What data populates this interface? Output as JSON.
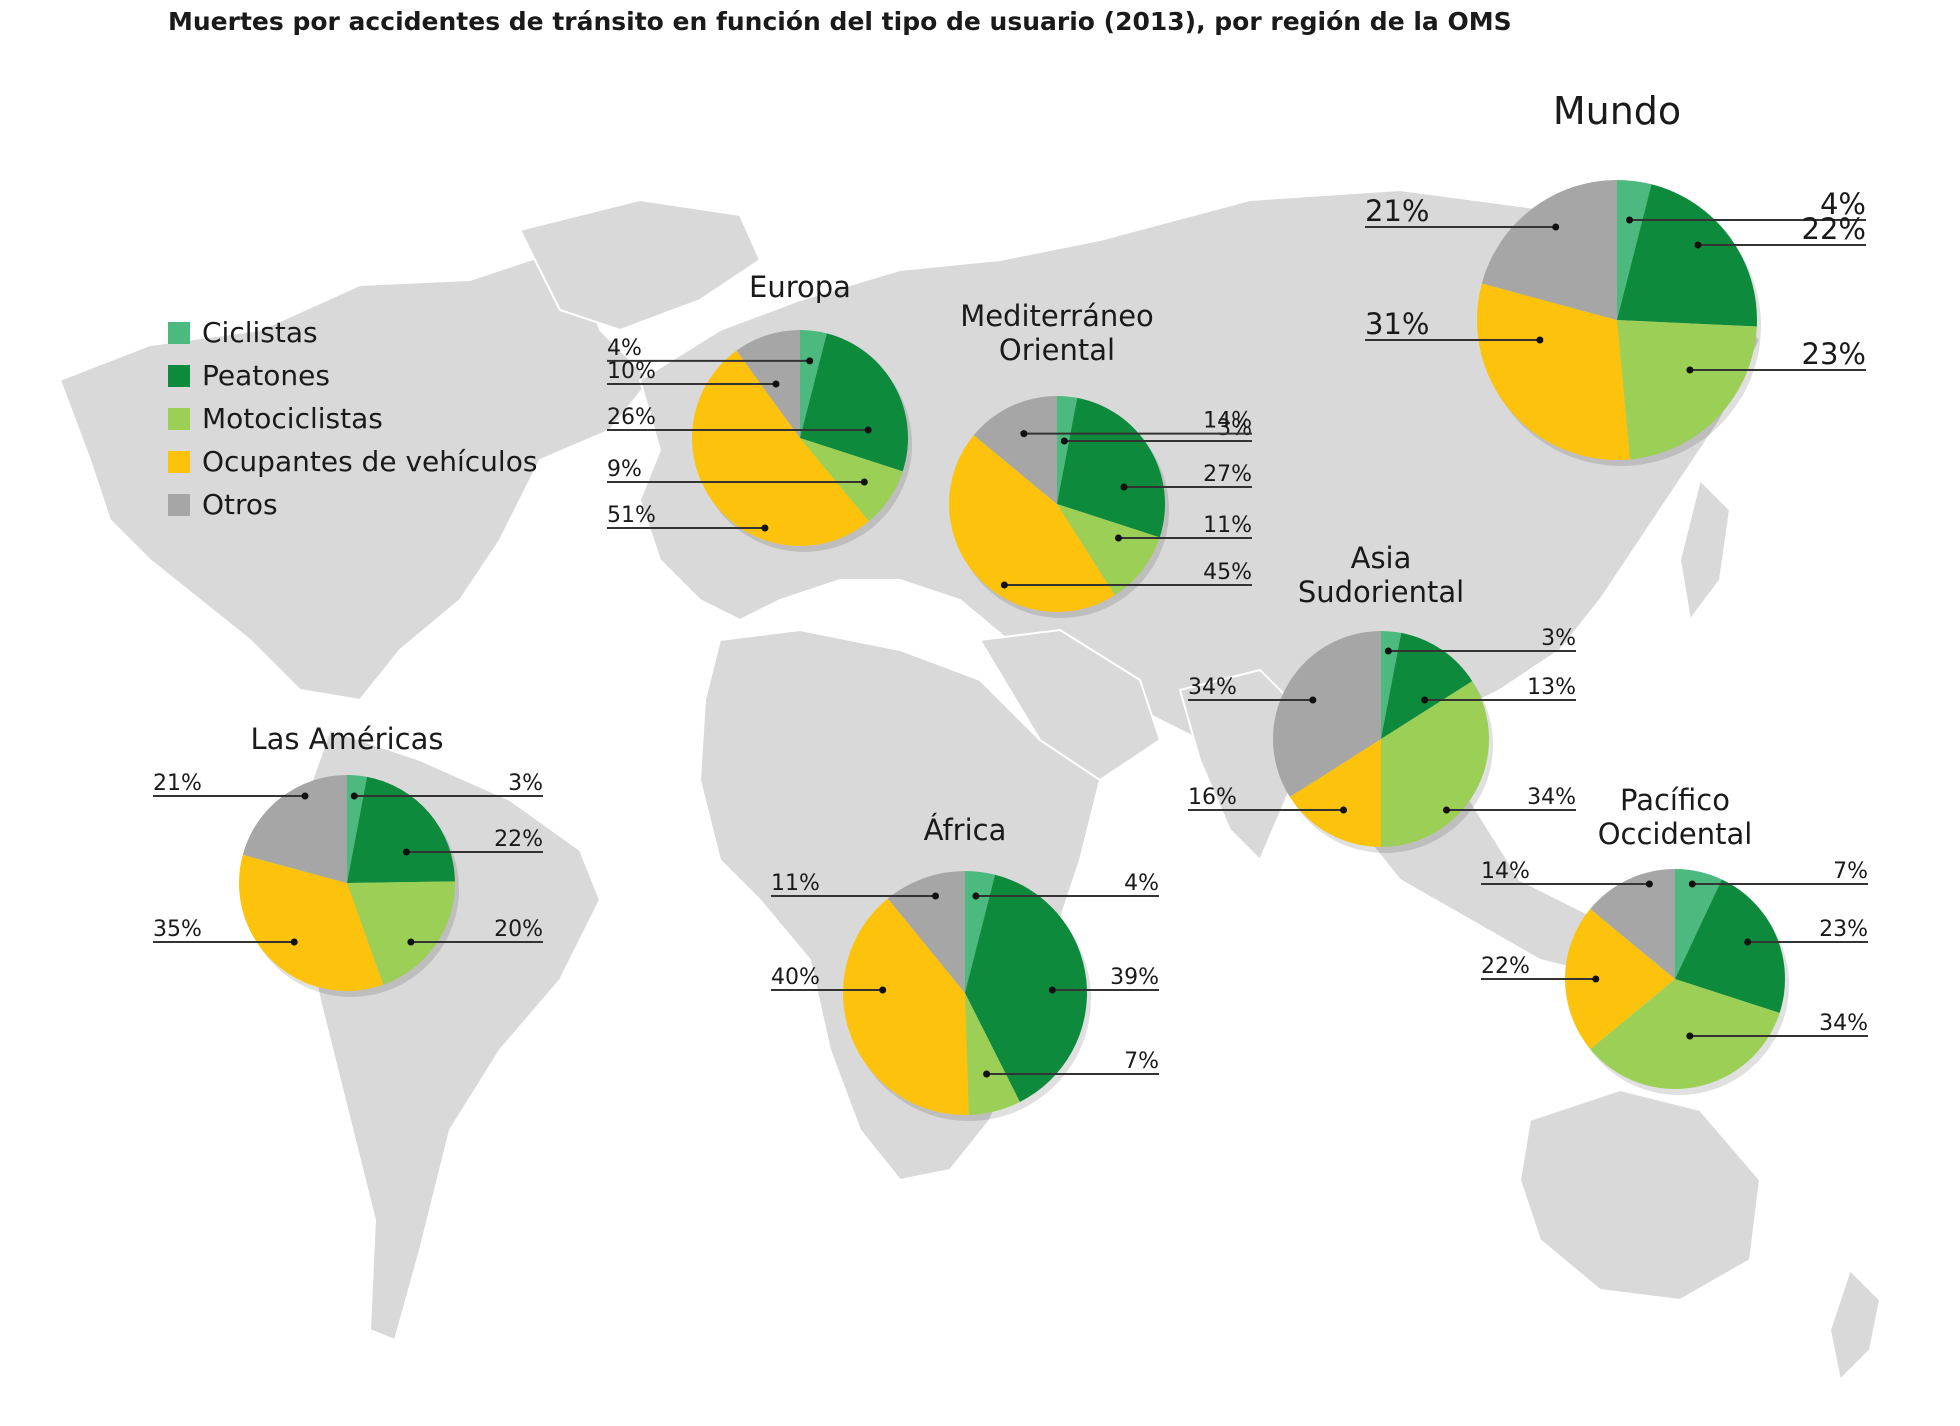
{
  "title": "Muertes por accidentes de tránsito en función del tipo de usuario (2013), por región de la OMS",
  "colors": {
    "ciclistas": "#4cb97e",
    "peatones": "#0e8a3c",
    "motociclistas": "#9ccf55",
    "ocupantes": "#fcc20c",
    "otros": "#a6a6a6",
    "land": "#d9d9d9",
    "water": "#ffffff"
  },
  "legend": [
    {
      "key": "ciclistas",
      "label": "Ciclistas"
    },
    {
      "key": "peatones",
      "label": "Peatones"
    },
    {
      "key": "motociclistas",
      "label": "Motociclistas"
    },
    {
      "key": "ocupantes",
      "label": "Ocupantes de vehículos"
    },
    {
      "key": "otros",
      "label": "Otros"
    }
  ],
  "chart_data": {
    "type": "pie",
    "title": "Muertes por accidentes de tránsito en función del tipo de usuario (2013), por región de la OMS",
    "categories": [
      "Ciclistas",
      "Peatones",
      "Motociclistas",
      "Ocupantes de vehículos",
      "Otros"
    ],
    "pies": [
      {
        "id": "mundo",
        "title": [
          "Mundo"
        ],
        "values": [
          4,
          22,
          23,
          31,
          21
        ],
        "labels": [
          "4%",
          "22%",
          "23%",
          "31%",
          "21%"
        ]
      },
      {
        "id": "europa",
        "title": [
          "Europa"
        ],
        "values": [
          4,
          26,
          9,
          51,
          10
        ],
        "labels": [
          "4%",
          "26%",
          "9%",
          "51%",
          "10%"
        ]
      },
      {
        "id": "mediterraneo",
        "title": [
          "Mediterráneo",
          "Oriental"
        ],
        "values": [
          3,
          27,
          11,
          45,
          14
        ],
        "labels": [
          "3%",
          "27%",
          "11%",
          "45%",
          "14%"
        ]
      },
      {
        "id": "americas",
        "title": [
          "Las Américas"
        ],
        "values": [
          3,
          22,
          20,
          35,
          21
        ],
        "labels": [
          "3%",
          "22%",
          "20%",
          "35%",
          "21%"
        ]
      },
      {
        "id": "africa",
        "title": [
          "África"
        ],
        "values": [
          4,
          39,
          7,
          40,
          11
        ],
        "labels": [
          "4%",
          "39%",
          "7%",
          "40%",
          "11%"
        ]
      },
      {
        "id": "asia",
        "title": [
          "Asia",
          "Sudoriental"
        ],
        "values": [
          3,
          13,
          34,
          16,
          34
        ],
        "labels": [
          "3%",
          "13%",
          "34%",
          "16%",
          "34%"
        ]
      },
      {
        "id": "pacifico",
        "title": [
          "Pacífico",
          "Occidental"
        ],
        "values": [
          7,
          23,
          34,
          22,
          14
        ],
        "labels": [
          "7%",
          "23%",
          "34%",
          "22%",
          "14%"
        ]
      }
    ]
  }
}
